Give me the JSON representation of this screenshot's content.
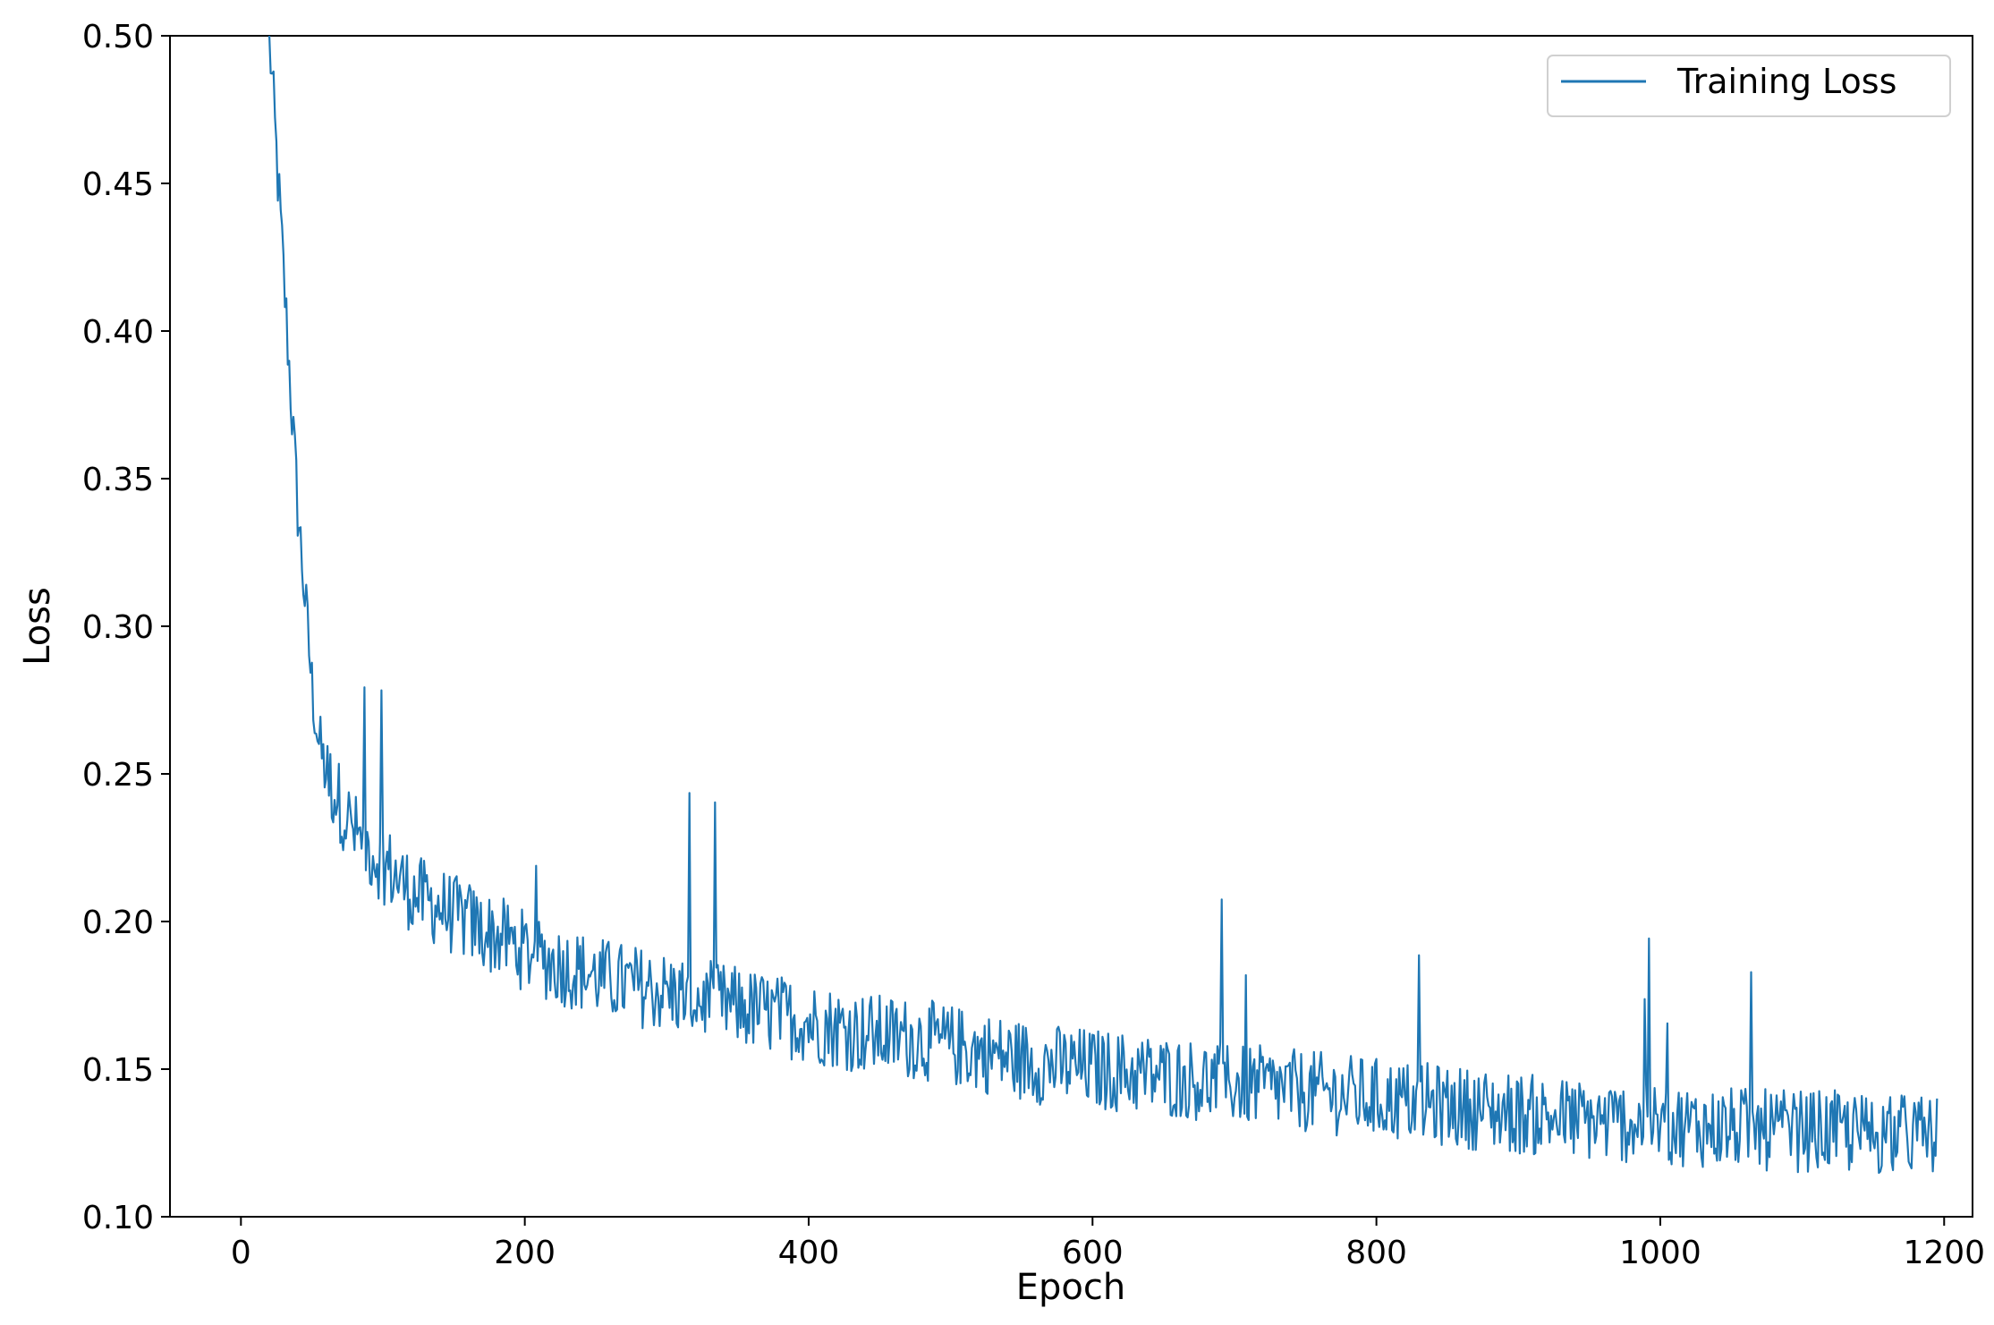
{
  "chart_data": {
    "type": "line",
    "title": "",
    "xlabel": "Epoch",
    "ylabel": "Loss",
    "xlim": [
      -50,
      1220
    ],
    "ylim": [
      0.1,
      0.5
    ],
    "xticks": [
      0,
      200,
      400,
      600,
      800,
      1000,
      1200
    ],
    "yticks": [
      0.1,
      0.15,
      0.2,
      0.25,
      0.3,
      0.35,
      0.4,
      0.45,
      0.5
    ],
    "xtick_labels": [
      "0",
      "200",
      "400",
      "600",
      "800",
      "1000",
      "1200"
    ],
    "ytick_labels": [
      "0.10",
      "0.15",
      "0.20",
      "0.25",
      "0.30",
      "0.35",
      "0.40",
      "0.45",
      "0.50"
    ],
    "grid": false,
    "legend_position": "top-right",
    "series": [
      {
        "name": "Training Loss",
        "color": "#1f77b4",
        "x": [
          20,
          25,
          30,
          35,
          40,
          45,
          50,
          55,
          60,
          70,
          80,
          90,
          100,
          110,
          120,
          130,
          140,
          150,
          160,
          170,
          180,
          190,
          200,
          220,
          240,
          260,
          280,
          300,
          320,
          340,
          360,
          380,
          400,
          420,
          440,
          460,
          480,
          500,
          520,
          540,
          560,
          580,
          600,
          620,
          640,
          660,
          680,
          700,
          720,
          740,
          760,
          780,
          800,
          820,
          840,
          860,
          880,
          900,
          920,
          940,
          960,
          980,
          1000,
          1020,
          1040,
          1060,
          1080,
          1100,
          1120,
          1140,
          1160,
          1180,
          1195
        ],
        "y": [
          0.5,
          0.46,
          0.42,
          0.38,
          0.34,
          0.31,
          0.28,
          0.26,
          0.25,
          0.24,
          0.23,
          0.225,
          0.22,
          0.215,
          0.21,
          0.207,
          0.205,
          0.202,
          0.2,
          0.197,
          0.195,
          0.193,
          0.19,
          0.186,
          0.183,
          0.18,
          0.178,
          0.176,
          0.174,
          0.172,
          0.17,
          0.168,
          0.166,
          0.164,
          0.162,
          0.161,
          0.16,
          0.158,
          0.156,
          0.154,
          0.152,
          0.151,
          0.15,
          0.149,
          0.148,
          0.147,
          0.146,
          0.145,
          0.144,
          0.143,
          0.142,
          0.141,
          0.14,
          0.139,
          0.138,
          0.137,
          0.136,
          0.135,
          0.134,
          0.133,
          0.132,
          0.132,
          0.131,
          0.131,
          0.13,
          0.13,
          0.129,
          0.129,
          0.129,
          0.128,
          0.128,
          0.128,
          0.127
        ]
      }
    ]
  }
}
